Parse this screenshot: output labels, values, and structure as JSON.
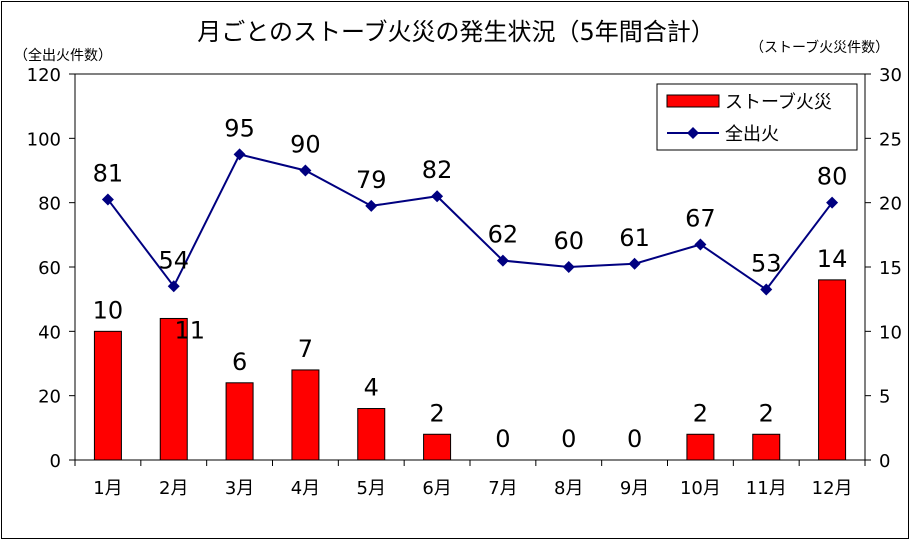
{
  "chart_data": {
    "type": "bar",
    "title": "月ごとのストーブ火災の発生状況（5年間合計）",
    "y_left_label": "（全出火件数）",
    "y_right_label": "（ストーブ火災件数）",
    "categories": [
      "1月",
      "2月",
      "3月",
      "4月",
      "5月",
      "6月",
      "7月",
      "8月",
      "9月",
      "10月",
      "11月",
      "12月"
    ],
    "y_left_ticks": [
      "0",
      "20",
      "40",
      "60",
      "80",
      "100",
      "120"
    ],
    "y_right_ticks": [
      "0",
      "5",
      "10",
      "15",
      "20",
      "25",
      "30"
    ],
    "ylim_left": [
      0,
      120
    ],
    "ylim_right": [
      0,
      30
    ],
    "series": [
      {
        "name": "ストーブ火災",
        "type": "bar",
        "axis": "right",
        "color": "#ff0000",
        "values": [
          10,
          11,
          6,
          7,
          4,
          2,
          0,
          0,
          0,
          2,
          2,
          14
        ],
        "labels": [
          "10",
          "11",
          "6",
          "7",
          "4",
          "2",
          "0",
          "0",
          "0",
          "2",
          "2",
          "14"
        ]
      },
      {
        "name": "全出火",
        "type": "line",
        "axis": "left",
        "color": "#000080",
        "values": [
          81,
          54,
          95,
          90,
          79,
          82,
          62,
          60,
          61,
          67,
          53,
          80
        ],
        "labels": [
          "81",
          "54",
          "95",
          "90",
          "79",
          "82",
          "62",
          "60",
          "61",
          "67",
          "53",
          "80"
        ]
      }
    ],
    "legend_position": "top-right",
    "grid": false
  }
}
